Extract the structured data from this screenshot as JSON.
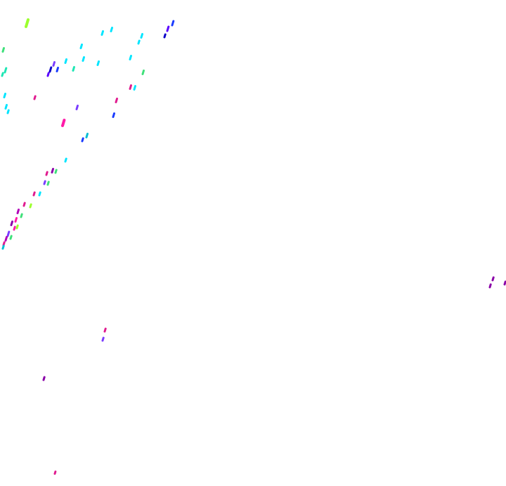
{
  "scene": {
    "background": "#ffffff",
    "palette": [
      "#00e5ff",
      "#00bcd4",
      "#1ee6b4",
      "#3fe07a",
      "#9cff2e",
      "#ff1aa8",
      "#e01b8f",
      "#b000b8",
      "#8a00a8",
      "#7a3cff",
      "#5a00ff",
      "#1a3cff",
      "#0a00c8"
    ]
  }
}
